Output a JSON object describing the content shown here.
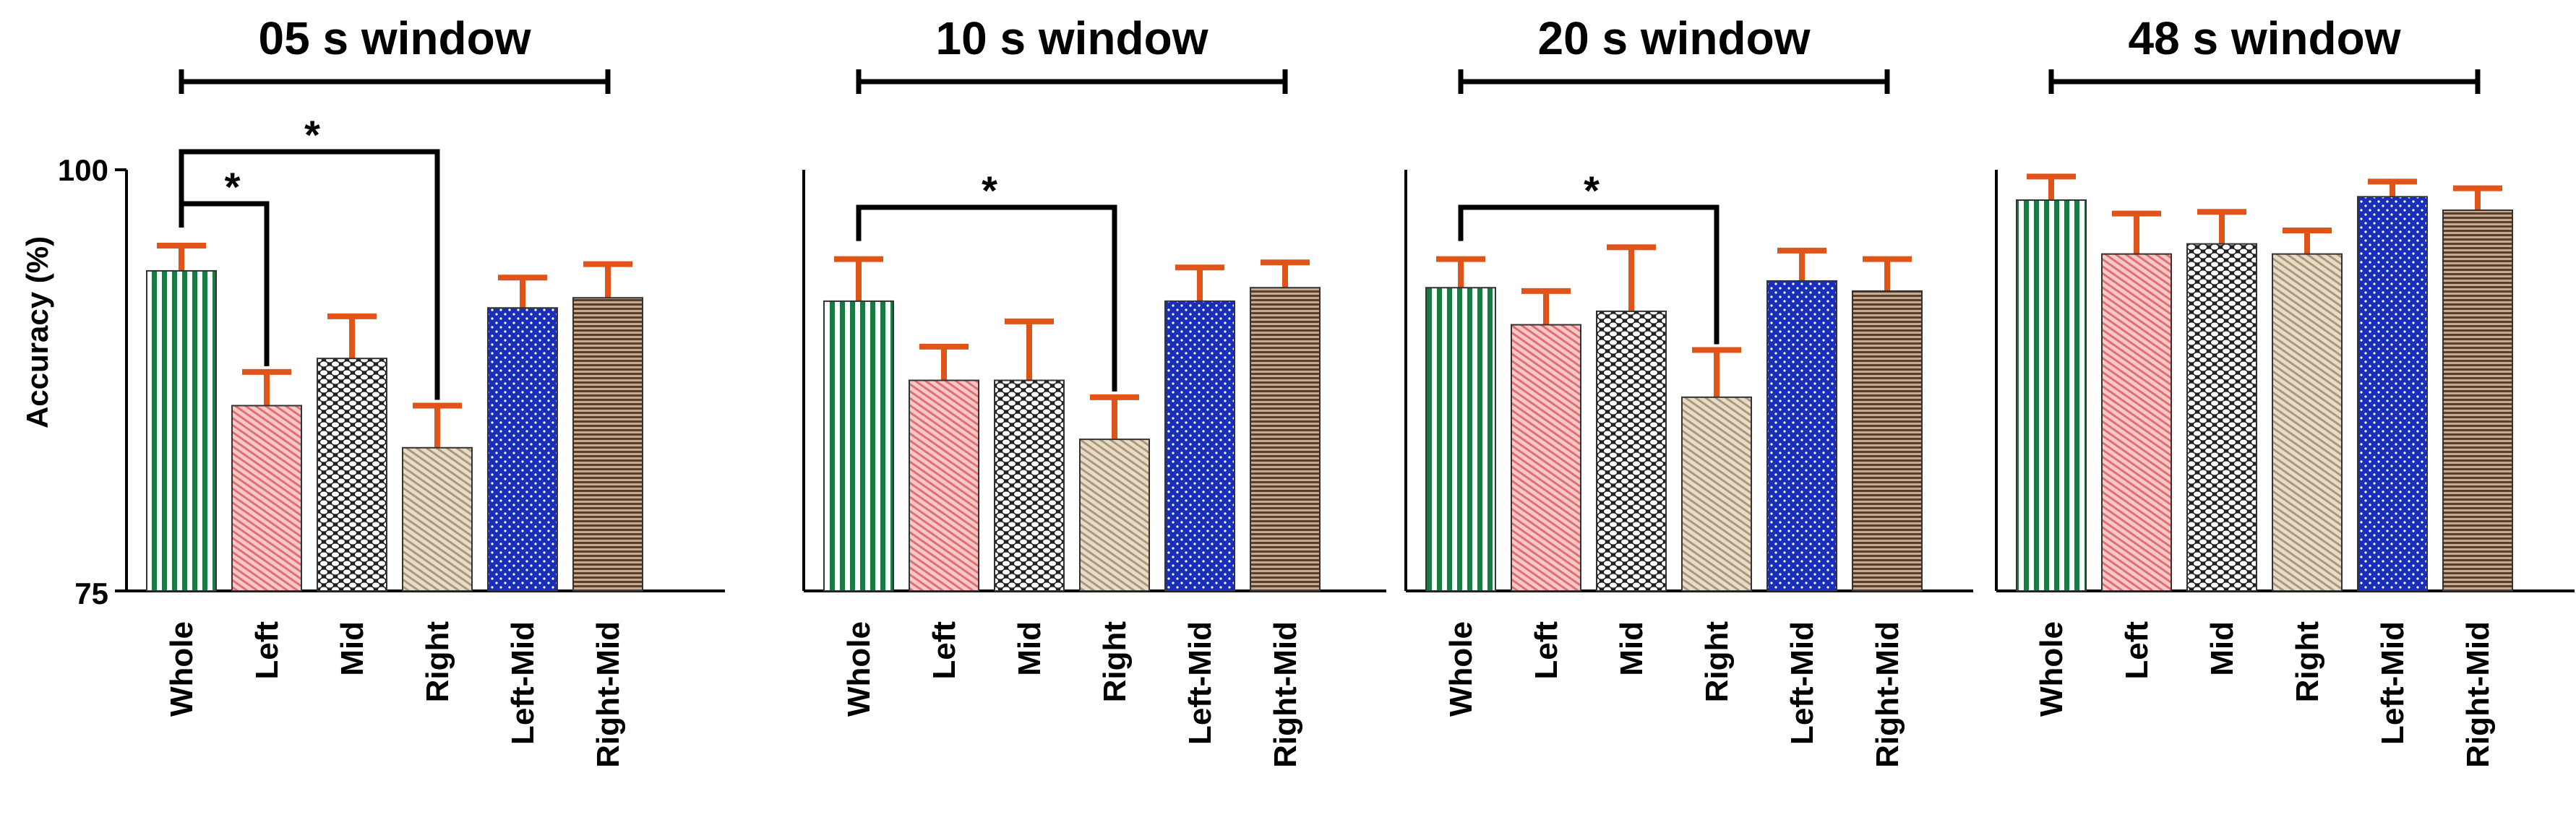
{
  "chart_data": {
    "type": "bar",
    "ylabel": "Accuracy (%)",
    "ylim": [
      75,
      100
    ],
    "yticks": [
      "75",
      "100"
    ],
    "error_color": "#e0541a",
    "significance_symbol": "*",
    "categories": [
      "Whole",
      "Left",
      "Mid",
      "Right",
      "Left-Mid",
      "Right-Mid"
    ],
    "series_styles": [
      {
        "name": "Whole",
        "fill": "#1a7a44",
        "bg": "#ffffff",
        "pattern": "vertical-stripes"
      },
      {
        "name": "Left",
        "fill": "#e07070",
        "bg": "#f6c8c8",
        "pattern": "diagonal-lines"
      },
      {
        "name": "Mid",
        "fill": "#222222",
        "bg": "#ffffff",
        "pattern": "hex-mesh"
      },
      {
        "name": "Right",
        "fill": "#a8987e",
        "bg": "#e8dcc6",
        "pattern": "diagonal-lines"
      },
      {
        "name": "Left-Mid",
        "fill": "#1a2fb8",
        "bg": "#1a2fb8",
        "pattern": "dots"
      },
      {
        "name": "Right-Mid",
        "fill": "#5a3f2a",
        "bg": "#c8aa90",
        "pattern": "horizontal-lines"
      }
    ],
    "panels": [
      {
        "title": "05 s window",
        "values": [
          94.0,
          86.0,
          88.8,
          83.5,
          91.8,
          92.4
        ],
        "errors": [
          1.5,
          2.0,
          2.5,
          2.5,
          1.8,
          2.0
        ],
        "significance": [
          {
            "from": "Whole",
            "to": "Left",
            "label": "*"
          },
          {
            "from": "Whole",
            "to": "Right",
            "label": "*"
          }
        ]
      },
      {
        "title": "10 s window",
        "values": [
          92.2,
          87.5,
          87.5,
          84.0,
          92.2,
          93.0
        ],
        "errors": [
          2.5,
          2.0,
          3.5,
          2.5,
          2.0,
          1.5
        ],
        "significance": [
          {
            "from": "Whole",
            "to": "Right",
            "label": "*"
          }
        ]
      },
      {
        "title": "20 s window",
        "values": [
          93.0,
          90.8,
          91.6,
          86.5,
          93.4,
          92.8
        ],
        "errors": [
          1.7,
          2.0,
          3.8,
          2.8,
          1.8,
          1.9
        ],
        "significance": [
          {
            "from": "Whole",
            "to": "Right",
            "label": "*"
          }
        ]
      },
      {
        "title": "48 s window",
        "values": [
          98.2,
          95.0,
          95.6,
          95.0,
          98.4,
          97.6
        ],
        "errors": [
          1.4,
          2.4,
          1.9,
          1.4,
          0.9,
          1.3
        ],
        "significance": []
      }
    ]
  }
}
